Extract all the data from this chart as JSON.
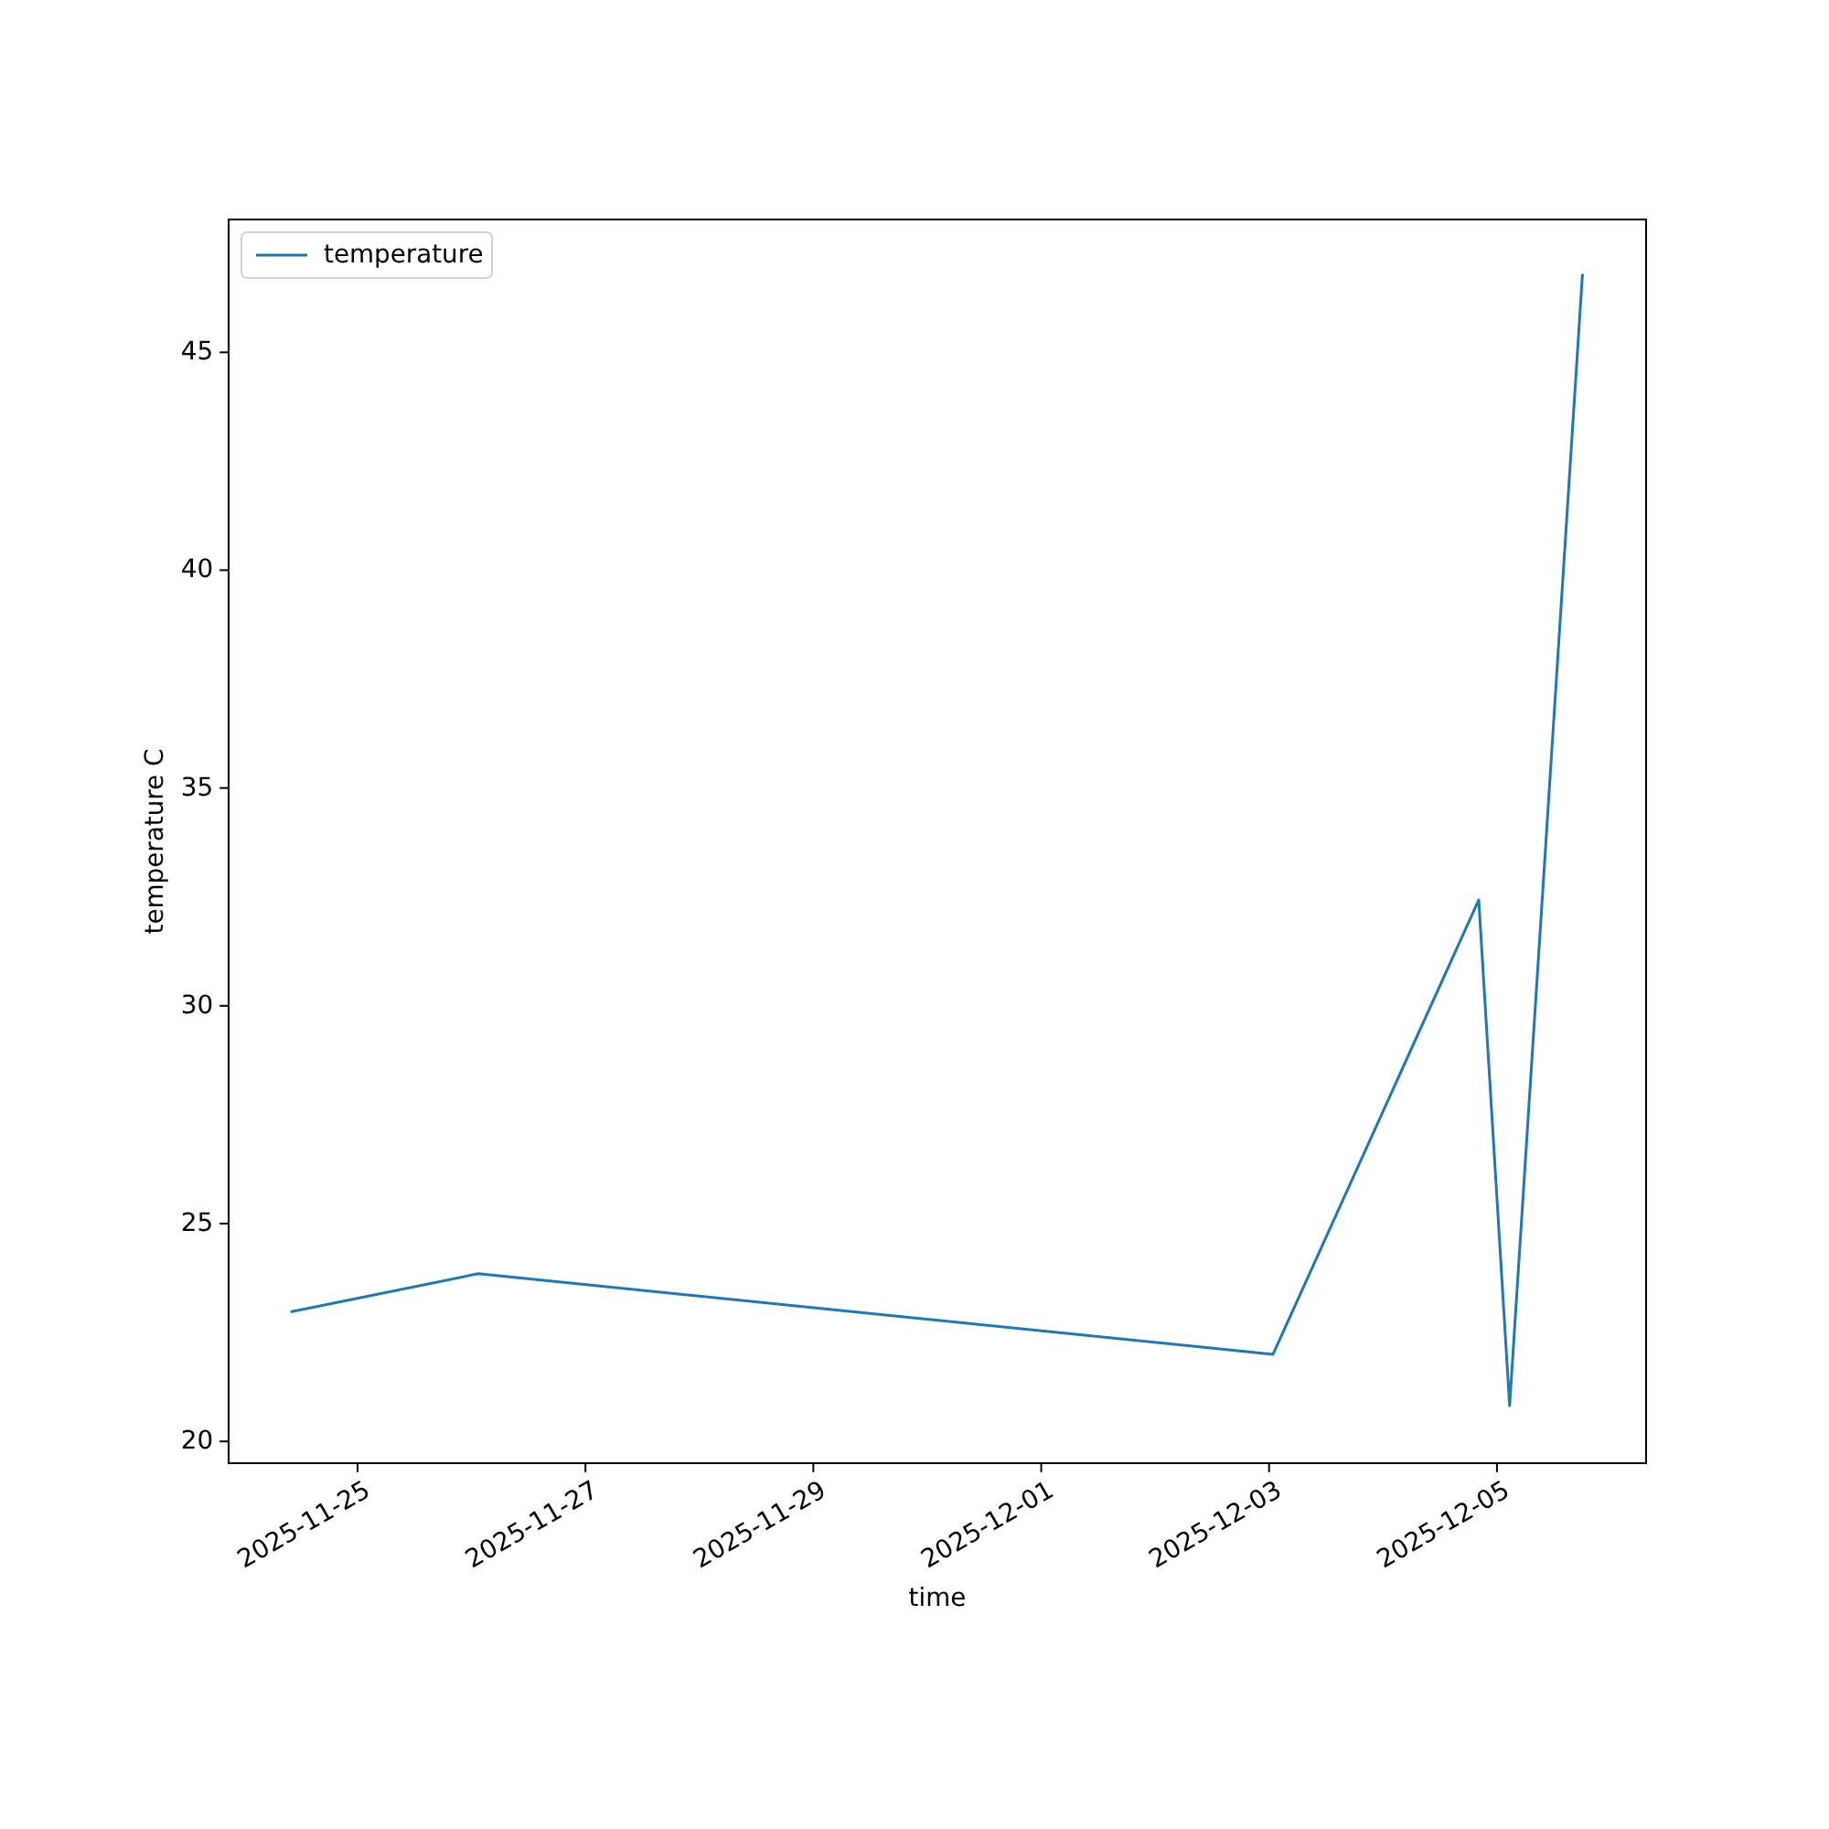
{
  "chart_data": {
    "type": "line",
    "xlabel": "time",
    "ylabel": "temperature C",
    "x": [
      "2025-11-24T10:10",
      "2025-11-26T01:25",
      "2025-12-03T00:50",
      "2025-12-04T20:10",
      "2025-12-05T02:40",
      "2025-12-05T18:00"
    ],
    "series": [
      {
        "name": "temperature",
        "color": "#1f77b4",
        "values": [
          22.98,
          23.85,
          22.0,
          32.43,
          20.82,
          46.77
        ]
      }
    ],
    "xlim": [
      "2025-11-23T20:50",
      "2025-12-06T07:25"
    ],
    "xticks": [
      "2025-11-25",
      "2025-11-27",
      "2025-11-29",
      "2025-12-01",
      "2025-12-03",
      "2025-12-05"
    ],
    "ylim": [
      19.5,
      48.05
    ],
    "yticks": [
      20,
      25,
      30,
      35,
      40,
      45
    ],
    "legend": "top left",
    "line_style": "solid"
  }
}
